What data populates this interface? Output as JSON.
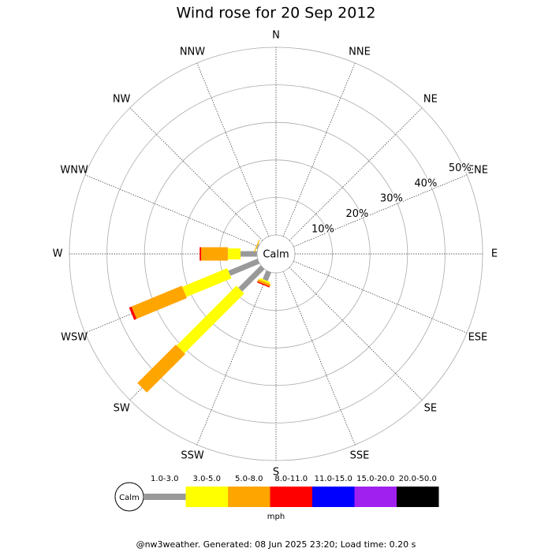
{
  "chart_data": {
    "type": "windrose",
    "title": "Wind rose for 20 Sep 2012",
    "directions": [
      "N",
      "NNE",
      "NE",
      "ENE",
      "E",
      "ESE",
      "SE",
      "SSE",
      "S",
      "SSW",
      "SW",
      "WSW",
      "W",
      "WNW",
      "NW",
      "NNW"
    ],
    "rlim": [
      0,
      50
    ],
    "rticks": [
      {
        "value": 10,
        "label": "10%"
      },
      {
        "value": 20,
        "label": "20%"
      },
      {
        "value": 30,
        "label": "30%"
      },
      {
        "value": 40,
        "label": "40%"
      },
      {
        "value": 50,
        "label": "50%"
      }
    ],
    "calm_label": "Calm",
    "legend_unit": "mph",
    "series": [
      {
        "name": "1.0-3.0",
        "color": "#999999",
        "values": [
          0,
          0,
          0,
          0,
          0,
          0,
          0,
          0,
          0,
          2.5,
          8.4,
          8.4,
          4.4,
          0.3,
          0,
          0
        ]
      },
      {
        "name": "3.0-5.0",
        "color": "#ffff00",
        "values": [
          0,
          0,
          0,
          0,
          0,
          0,
          0,
          0,
          0,
          0.5,
          22.5,
          13.0,
          3.4,
          0.1,
          0,
          0
        ]
      },
      {
        "name": "5.0-8.0",
        "color": "#ffa500",
        "values": [
          0,
          0,
          0,
          0,
          0,
          0,
          0,
          0,
          0,
          0.6,
          14.5,
          14.5,
          7.1,
          0.2,
          0,
          0
        ]
      },
      {
        "name": "8.0-11.0",
        "color": "#ff0000",
        "values": [
          0,
          0,
          0,
          0,
          0,
          0,
          0,
          0,
          0,
          0.3,
          0,
          0.7,
          0.4,
          0,
          0,
          0
        ]
      },
      {
        "name": "11.0-15.0",
        "color": "#0000ff",
        "values": [
          0,
          0,
          0,
          0,
          0,
          0,
          0,
          0,
          0,
          0,
          0,
          0,
          0,
          0,
          0,
          0
        ]
      },
      {
        "name": "15.0-20.0",
        "color": "#a020f0",
        "values": [
          0,
          0,
          0,
          0,
          0,
          0,
          0,
          0,
          0,
          0,
          0,
          0,
          0,
          0,
          0,
          0
        ]
      },
      {
        "name": "20.0-50.0",
        "color": "#000000",
        "values": [
          0,
          0,
          0,
          0,
          0,
          0,
          0,
          0,
          0,
          0,
          0,
          0,
          0,
          0,
          0,
          0
        ]
      }
    ]
  },
  "footer": "@nw3weather. Generated: 08 Jun 2025 23:20; Load time: 0.20 s"
}
